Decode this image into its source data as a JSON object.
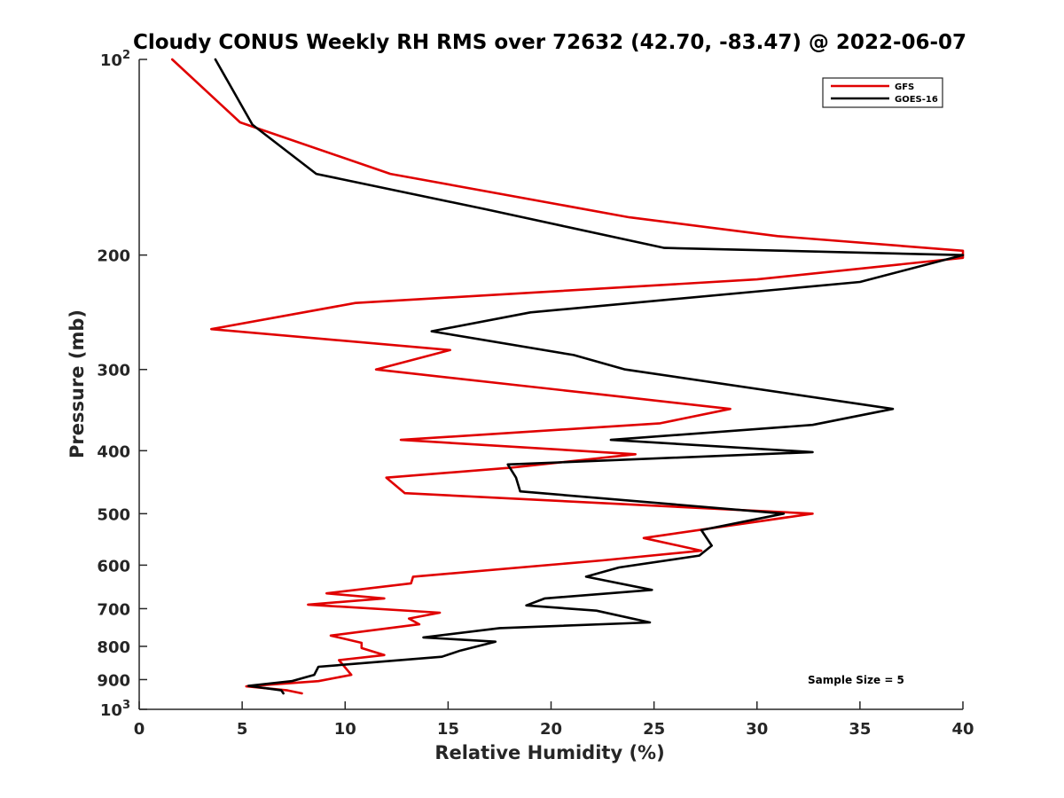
{
  "chart_data": {
    "type": "line",
    "title": "Cloudy CONUS Weekly RH RMS over 72632 (42.70, -83.47) @ 2022-06-07",
    "xlabel": "Relative Humidity (%)",
    "ylabel": "Pressure (mb)",
    "xlim": [
      0,
      40
    ],
    "ylim": [
      100,
      1000
    ],
    "y_scale": "log",
    "y_reversed": true,
    "grid": false,
    "legend_position": "top-right",
    "x_ticks": [
      "0",
      "5",
      "10",
      "15",
      "20",
      "25",
      "30",
      "35",
      "40"
    ],
    "y_ticks": [
      {
        "value": 100,
        "base": "10",
        "exp": "2"
      },
      {
        "value": 200,
        "text": "200"
      },
      {
        "value": 300,
        "text": "300"
      },
      {
        "value": 400,
        "text": "400"
      },
      {
        "value": 500,
        "text": "500"
      },
      {
        "value": 600,
        "text": "600"
      },
      {
        "value": 700,
        "text": "700"
      },
      {
        "value": 800,
        "text": "800"
      },
      {
        "value": 900,
        "text": "900"
      },
      {
        "value": 1000,
        "base": "10",
        "exp": "3"
      }
    ],
    "annotation": "Sample Size = 5",
    "series": [
      {
        "name": "GFS",
        "color": "#e00000",
        "points": [
          [
            1.6,
            100
          ],
          [
            4.9,
            125
          ],
          [
            12.2,
            150
          ],
          [
            23.8,
            175
          ],
          [
            31.0,
            187
          ],
          [
            40.0,
            197
          ],
          [
            40.0,
            202
          ],
          [
            30.0,
            218
          ],
          [
            10.5,
            237
          ],
          [
            3.5,
            260
          ],
          [
            15.1,
            280
          ],
          [
            11.5,
            300
          ],
          [
            22.5,
            328
          ],
          [
            28.7,
            345
          ],
          [
            25.3,
            363
          ],
          [
            12.7,
            385
          ],
          [
            24.1,
            405
          ],
          [
            18.0,
            425
          ],
          [
            12.0,
            440
          ],
          [
            12.9,
            465
          ],
          [
            32.7,
            500
          ],
          [
            24.5,
            545
          ],
          [
            27.3,
            570
          ],
          [
            22.5,
            590
          ],
          [
            13.3,
            625
          ],
          [
            13.2,
            640
          ],
          [
            9.1,
            663
          ],
          [
            11.9,
            675
          ],
          [
            8.2,
            690
          ],
          [
            14.6,
            710
          ],
          [
            13.1,
            725
          ],
          [
            13.6,
            740
          ],
          [
            9.3,
            770
          ],
          [
            10.8,
            790
          ],
          [
            10.8,
            805
          ],
          [
            11.9,
            825
          ],
          [
            9.7,
            840
          ],
          [
            10.3,
            885
          ],
          [
            8.7,
            905
          ],
          [
            5.2,
            922
          ],
          [
            7.2,
            935
          ],
          [
            7.9,
            945
          ]
        ]
      },
      {
        "name": "GOES-16",
        "color": "#000000",
        "points": [
          [
            3.7,
            100
          ],
          [
            5.5,
            126
          ],
          [
            8.6,
            150
          ],
          [
            16.8,
            170
          ],
          [
            25.5,
            195
          ],
          [
            40.0,
            200
          ],
          [
            35.0,
            220
          ],
          [
            19.0,
            245
          ],
          [
            14.2,
            262
          ],
          [
            21.1,
            285
          ],
          [
            23.6,
            300
          ],
          [
            36.6,
            345
          ],
          [
            32.7,
            365
          ],
          [
            22.9,
            385
          ],
          [
            32.7,
            402
          ],
          [
            17.9,
            420
          ],
          [
            18.3,
            440
          ],
          [
            18.5,
            462
          ],
          [
            31.3,
            500
          ],
          [
            27.3,
            530
          ],
          [
            27.8,
            560
          ],
          [
            27.2,
            580
          ],
          [
            23.3,
            605
          ],
          [
            21.7,
            625
          ],
          [
            24.9,
            655
          ],
          [
            19.7,
            675
          ],
          [
            18.8,
            692
          ],
          [
            22.2,
            705
          ],
          [
            24.8,
            735
          ],
          [
            17.5,
            750
          ],
          [
            13.8,
            775
          ],
          [
            17.3,
            787
          ],
          [
            15.6,
            812
          ],
          [
            14.7,
            830
          ],
          [
            8.7,
            860
          ],
          [
            8.5,
            885
          ],
          [
            7.4,
            905
          ],
          [
            5.3,
            920
          ],
          [
            6.9,
            935
          ],
          [
            7.0,
            945
          ]
        ]
      }
    ]
  }
}
